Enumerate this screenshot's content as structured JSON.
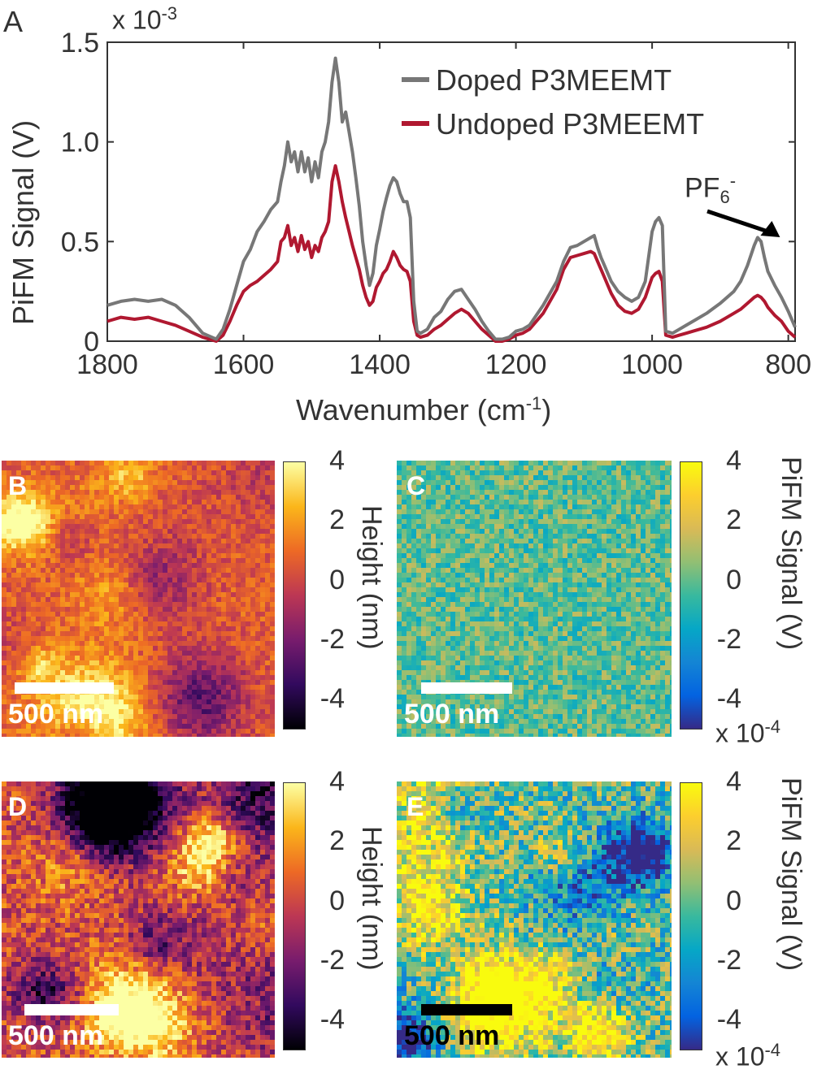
{
  "chart_data": [
    {
      "panel": "A",
      "type": "line",
      "multiplier": "x 10",
      "multiplier_exp": "-3",
      "ylabel": "PiFM Signal (V)",
      "xlabel": "Wavenumber (cm",
      "xlabel_sup": "-1",
      "xlabel_tail": ")",
      "xlim": [
        1800,
        790
      ],
      "ylim": [
        0,
        1.5
      ],
      "xticks": [
        "1800",
        "1600",
        "1400",
        "1200",
        "1000",
        "800"
      ],
      "yticks": [
        "0",
        "0.5",
        "1.0",
        "1.5"
      ],
      "legend_position": "top-right",
      "annotation": {
        "text": "PF",
        "sub": "6",
        "sup": "-",
        "x": 848
      },
      "x": [
        1800,
        1780,
        1760,
        1740,
        1720,
        1700,
        1680,
        1660,
        1640,
        1630,
        1620,
        1610,
        1600,
        1590,
        1580,
        1570,
        1560,
        1550,
        1545,
        1540,
        1535,
        1530,
        1525,
        1520,
        1515,
        1510,
        1505,
        1500,
        1495,
        1490,
        1485,
        1480,
        1475,
        1470,
        1465,
        1460,
        1455,
        1450,
        1445,
        1440,
        1435,
        1430,
        1425,
        1420,
        1415,
        1410,
        1405,
        1400,
        1395,
        1390,
        1385,
        1380,
        1375,
        1370,
        1365,
        1360,
        1355,
        1350,
        1345,
        1340,
        1330,
        1320,
        1310,
        1300,
        1290,
        1280,
        1270,
        1260,
        1250,
        1240,
        1230,
        1220,
        1210,
        1200,
        1190,
        1180,
        1160,
        1140,
        1130,
        1120,
        1110,
        1100,
        1090,
        1085,
        1080,
        1075,
        1070,
        1060,
        1050,
        1040,
        1030,
        1020,
        1010,
        1000,
        995,
        990,
        985,
        980,
        970,
        960,
        950,
        940,
        920,
        900,
        880,
        870,
        860,
        850,
        845,
        840,
        835,
        830,
        820,
        810,
        800,
        790
      ],
      "series": [
        {
          "name": "Doped P3MEEMT",
          "color": "#777777",
          "values": [
            0.18,
            0.2,
            0.21,
            0.2,
            0.21,
            0.18,
            0.12,
            0.04,
            0.01,
            0.06,
            0.16,
            0.28,
            0.4,
            0.46,
            0.55,
            0.6,
            0.66,
            0.7,
            0.8,
            0.88,
            1.0,
            0.9,
            0.95,
            0.85,
            0.95,
            0.85,
            0.92,
            0.8,
            0.9,
            0.82,
            0.95,
            1.0,
            1.1,
            1.3,
            1.42,
            1.3,
            1.1,
            1.15,
            1.05,
            0.95,
            0.82,
            0.68,
            0.5,
            0.38,
            0.28,
            0.34,
            0.48,
            0.56,
            0.65,
            0.72,
            0.78,
            0.82,
            0.8,
            0.74,
            0.7,
            0.7,
            0.62,
            0.2,
            0.05,
            0.04,
            0.06,
            0.12,
            0.15,
            0.21,
            0.25,
            0.26,
            0.21,
            0.16,
            0.1,
            0.05,
            0.01,
            0.01,
            0.02,
            0.05,
            0.06,
            0.08,
            0.18,
            0.3,
            0.4,
            0.47,
            0.48,
            0.5,
            0.52,
            0.53,
            0.47,
            0.42,
            0.38,
            0.3,
            0.25,
            0.22,
            0.2,
            0.22,
            0.3,
            0.55,
            0.6,
            0.62,
            0.58,
            0.05,
            0.04,
            0.06,
            0.08,
            0.1,
            0.14,
            0.19,
            0.25,
            0.3,
            0.38,
            0.48,
            0.52,
            0.5,
            0.42,
            0.35,
            0.28,
            0.22,
            0.15,
            0.07
          ]
        },
        {
          "name": "Undoped P3MEEMT",
          "color": "#b01830",
          "values": [
            0.1,
            0.12,
            0.11,
            0.12,
            0.1,
            0.08,
            0.05,
            0.02,
            0.0,
            0.03,
            0.1,
            0.18,
            0.25,
            0.28,
            0.3,
            0.33,
            0.36,
            0.4,
            0.5,
            0.52,
            0.58,
            0.48,
            0.52,
            0.45,
            0.53,
            0.46,
            0.5,
            0.42,
            0.48,
            0.45,
            0.52,
            0.55,
            0.6,
            0.8,
            0.88,
            0.8,
            0.7,
            0.62,
            0.55,
            0.48,
            0.42,
            0.36,
            0.28,
            0.22,
            0.18,
            0.2,
            0.27,
            0.3,
            0.34,
            0.36,
            0.4,
            0.45,
            0.42,
            0.38,
            0.36,
            0.35,
            0.3,
            0.1,
            0.03,
            0.02,
            0.03,
            0.06,
            0.08,
            0.11,
            0.14,
            0.16,
            0.14,
            0.1,
            0.06,
            0.03,
            0.0,
            0.0,
            0.01,
            0.03,
            0.04,
            0.06,
            0.14,
            0.26,
            0.36,
            0.42,
            0.43,
            0.44,
            0.45,
            0.44,
            0.4,
            0.36,
            0.32,
            0.24,
            0.18,
            0.15,
            0.14,
            0.16,
            0.22,
            0.32,
            0.34,
            0.35,
            0.3,
            0.03,
            0.02,
            0.03,
            0.04,
            0.05,
            0.07,
            0.1,
            0.14,
            0.16,
            0.19,
            0.22,
            0.23,
            0.22,
            0.2,
            0.17,
            0.13,
            0.1,
            0.05,
            0.02
          ]
        }
      ]
    },
    {
      "panel": "B",
      "type": "heatmap",
      "colormap": "inferno",
      "scalebar": "500 nm",
      "colorbar": {
        "label": "Height (nm)",
        "ticks": [
          "4",
          "2",
          "0",
          "-2",
          "-4"
        ],
        "range": [
          -5,
          4
        ]
      }
    },
    {
      "panel": "C",
      "type": "heatmap",
      "colormap": "parula",
      "scalebar": "500 nm",
      "colorbar": {
        "label": "PiFM Signal (V)",
        "ticks": [
          "4",
          "2",
          "0",
          "-2",
          "-4"
        ],
        "range": [
          -5,
          4
        ],
        "multiplier": "x 10",
        "multiplier_exp": "-4"
      }
    },
    {
      "panel": "D",
      "type": "heatmap",
      "colormap": "inferno",
      "scalebar": "500 nm",
      "colorbar": {
        "label": "Height (nm)",
        "ticks": [
          "4",
          "2",
          "0",
          "-2",
          "-4"
        ],
        "range": [
          -5,
          4
        ]
      }
    },
    {
      "panel": "E",
      "type": "heatmap",
      "colormap": "parula",
      "scalebar": "500 nm",
      "scalebar_color": "#000000",
      "colorbar": {
        "label": "PiFM Signal (V)",
        "ticks": [
          "4",
          "2",
          "0",
          "-2",
          "-4"
        ],
        "range": [
          -5,
          4
        ],
        "multiplier": "x 10",
        "multiplier_exp": "-4"
      }
    }
  ]
}
